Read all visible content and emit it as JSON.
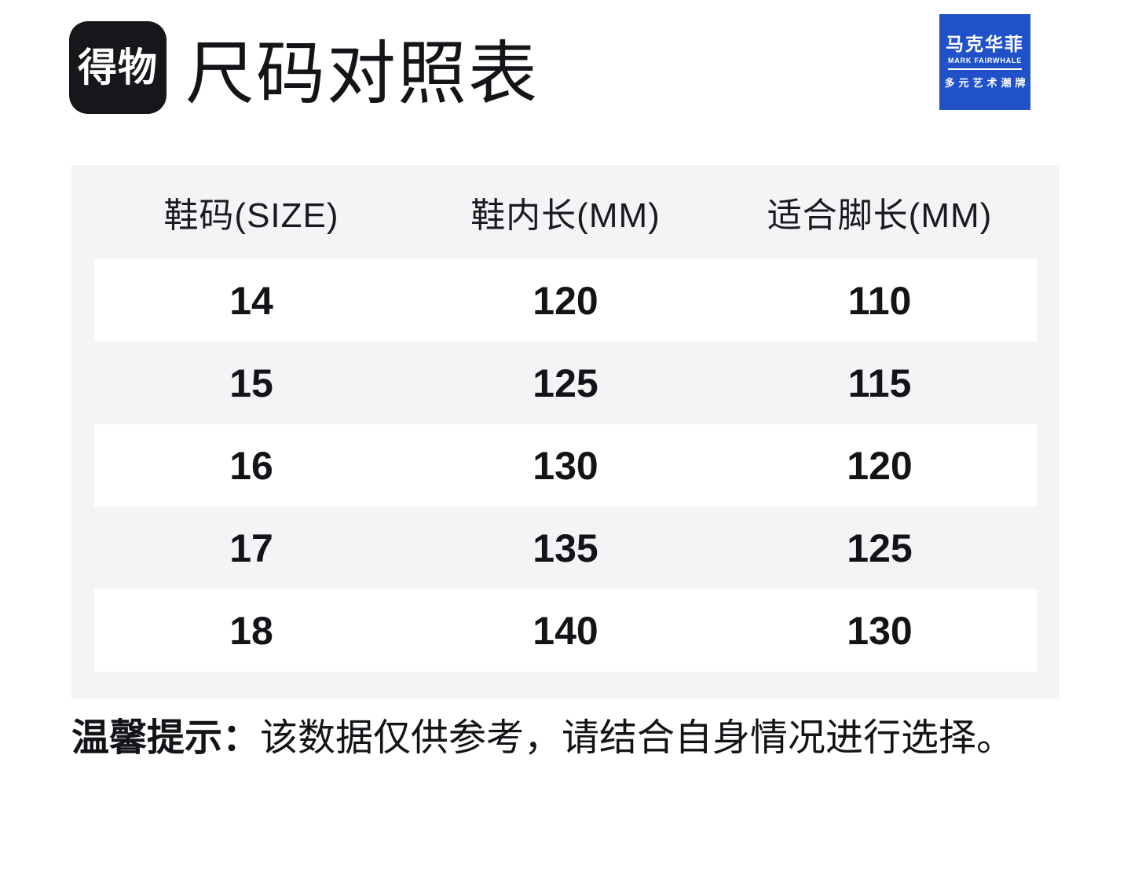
{
  "header": {
    "app_logo_text": "得物",
    "title": "尺码对照表"
  },
  "brand": {
    "name_cn": "马克华菲",
    "name_en": "MARK FAIRWHALE",
    "tagline": "多元艺术潮牌"
  },
  "colors": {
    "brand_blue": "#2151c8",
    "logo_black": "#17171b",
    "panel_gray": "#f4f4f7",
    "row_white": "#ffffff",
    "text_dark": "#131418"
  },
  "table": {
    "headers": [
      "鞋码(SIZE)",
      "鞋内长(MM)",
      "适合脚长(MM)"
    ],
    "rows": [
      [
        "14",
        "120",
        "110"
      ],
      [
        "15",
        "125",
        "115"
      ],
      [
        "16",
        "130",
        "120"
      ],
      [
        "17",
        "135",
        "125"
      ],
      [
        "18",
        "140",
        "130"
      ]
    ]
  },
  "note": {
    "label": "温馨提示：",
    "text": "该数据仅供参考，请结合自身情况进行选择。"
  },
  "chart_data": {
    "type": "table",
    "columns": [
      "鞋码(SIZE)",
      "鞋内长(MM)",
      "适合脚长(MM)"
    ],
    "rows": [
      [
        14,
        120,
        110
      ],
      [
        15,
        125,
        115
      ],
      [
        16,
        130,
        120
      ],
      [
        17,
        135,
        125
      ],
      [
        18,
        140,
        130
      ]
    ],
    "title": "尺码对照表"
  }
}
